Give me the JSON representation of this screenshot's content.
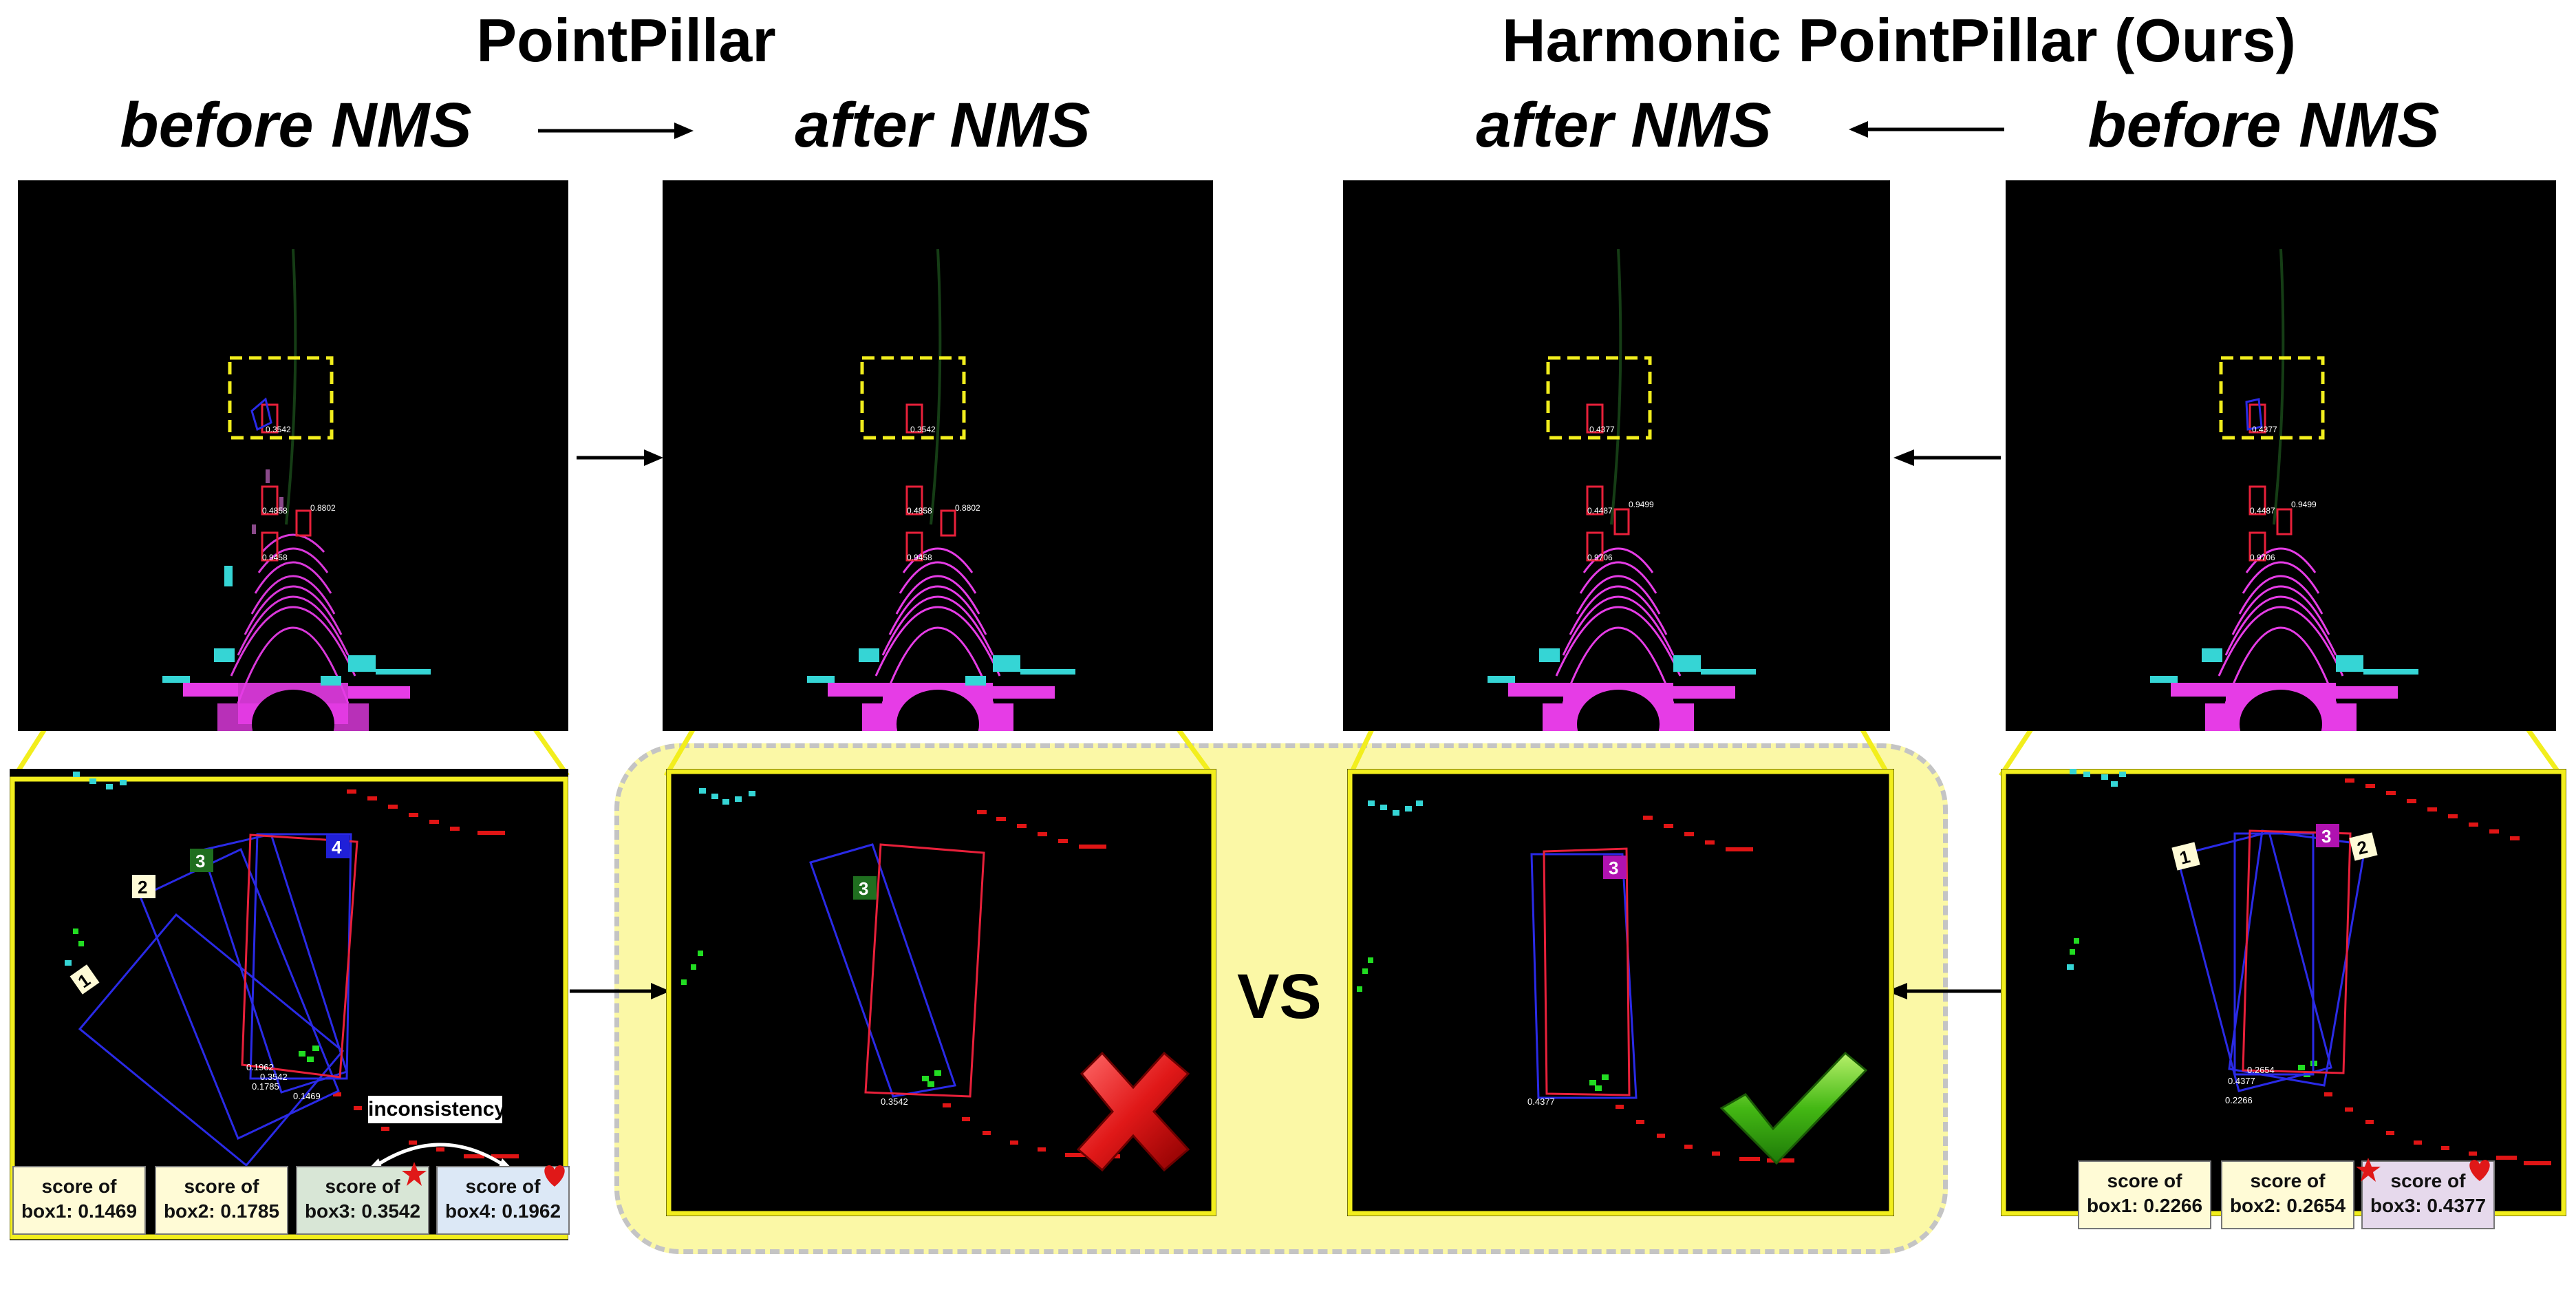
{
  "titles": {
    "left": "PointPillar",
    "right": "Harmonic PointPillar (Ours)"
  },
  "subtitles": {
    "col1": "before NMS",
    "col2": "after NMS",
    "col3": "after NMS",
    "col4": "before NMS"
  },
  "bev_scores": {
    "col1": [
      "0.3542",
      "0.4858",
      "0.8802",
      "0.9458"
    ],
    "col2": [
      "0.3542",
      "0.4858",
      "0.8802",
      "0.9458"
    ],
    "col3": [
      "0.4377",
      "0.4487",
      "0.9499",
      "0.9706"
    ],
    "col4": [
      "0.4377",
      "0.4487",
      "0.9499",
      "0.9706"
    ]
  },
  "zoom_labels": {
    "pp_before": [
      "0.1962",
      "0.3542",
      "0.1785",
      "0.1469"
    ],
    "pp_after": [
      "0.3542"
    ],
    "ours_after": [
      "0.4377"
    ],
    "ours_before": [
      "0.2654",
      "0.4377",
      "0.2266"
    ]
  },
  "box_badges": {
    "pp_before": [
      "1",
      "2",
      "3",
      "4"
    ],
    "pp_after": [
      "3"
    ],
    "ours_after": [
      "3"
    ],
    "ours_before": [
      "1",
      "3",
      "2"
    ]
  },
  "inconsistency_label": "inconsistency",
  "vs_label": "VS",
  "score_boxes_left": [
    {
      "line1": "score of",
      "line2": "box1: 0.1469",
      "bg": "#fffbd6"
    },
    {
      "line1": "score of",
      "line2": "box2: 0.1785",
      "bg": "#fffbd6"
    },
    {
      "line1": "score of",
      "line2": "box3: 0.3542",
      "bg": "#d8e6d6"
    },
    {
      "line1": "score of",
      "line2": "box4: 0.1962",
      "bg": "#dce8f6"
    }
  ],
  "score_boxes_right": [
    {
      "line1": "score of",
      "line2": "box1: 0.2266",
      "bg": "#fffbd6"
    },
    {
      "line1": "score of",
      "line2": "box2: 0.2654",
      "bg": "#fffbd6"
    },
    {
      "line1": "score of",
      "line2": "box3: 0.4377",
      "bg": "#e6d9ec"
    }
  ],
  "colors": {
    "highlight_yellow": "#f2ee1d",
    "comparison_bg": "#fbf8a6",
    "pred_box_blue": "#2a2ae6",
    "gt_box_red": "#e8203a",
    "point_magenta": "#e63ce6",
    "point_cyan": "#35d5d5",
    "point_red": "#e01515",
    "point_green": "#22dd22"
  },
  "icons": {
    "wrong": "red-x-icon",
    "right": "green-check-icon",
    "star": "star-icon",
    "heart": "heart-icon"
  }
}
